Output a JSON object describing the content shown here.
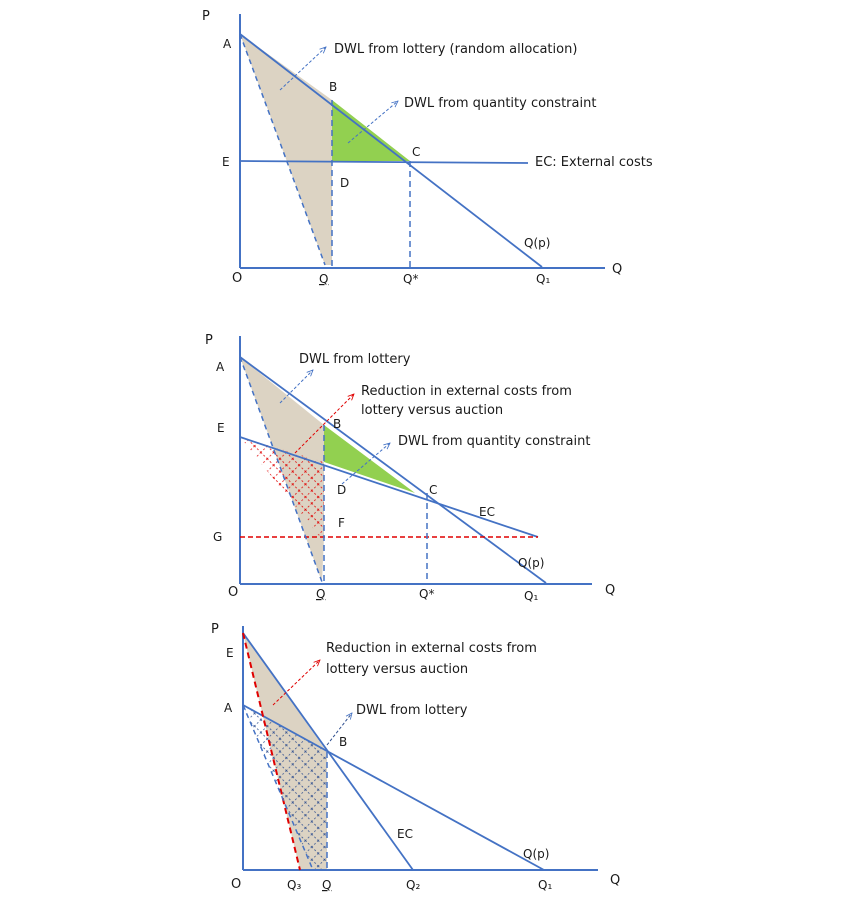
{
  "panel1": {
    "labels": {
      "P": "P",
      "A": "A",
      "B": "B",
      "C": "C",
      "D": "D",
      "E": "E",
      "O": "O",
      "Q": "Q",
      "Qbar": "Q",
      "Qstar": "Q*",
      "Q1": "Q₁",
      "Qp": "Q(p)"
    },
    "annotations": {
      "lottery": "DWL from lottery (random allocation)",
      "quantity": "DWL from quantity constraint",
      "ec": "EC: External costs"
    }
  },
  "panel2": {
    "labels": {
      "P": "P",
      "A": "A",
      "B": "B",
      "C": "C",
      "D": "D",
      "E": "E",
      "F": "F",
      "G": "G",
      "O": "O",
      "Q": "Q",
      "Qbar": "Q",
      "Qstar": "Q*",
      "Q1": "Q₁",
      "Qp": "Q(p)",
      "EC": "EC"
    },
    "annotations": {
      "lottery": "DWL from lottery",
      "reduction_line1": "Reduction in external costs from",
      "reduction_line2": "lottery versus auction",
      "quantity": "DWL from quantity constraint"
    }
  },
  "panel3": {
    "labels": {
      "P": "P",
      "E": "E",
      "A": "A",
      "B": "B",
      "O": "O",
      "Q": "Q",
      "Q3": "Q₃",
      "Qbar": "Q",
      "Q2": "Q₂",
      "Q1": "Q₁",
      "Qp": "Q(p)",
      "EC": "EC"
    },
    "annotations": {
      "reduction_line1": "Reduction in external costs from",
      "reduction_line2": "lottery versus auction",
      "lottery": "DWL from lottery"
    }
  },
  "colors": {
    "line": "#4472c4",
    "tan_fill": "#dcd3c3",
    "green_fill": "#92d050",
    "red_dash": "#e00000",
    "text": "#1a1a1a"
  }
}
